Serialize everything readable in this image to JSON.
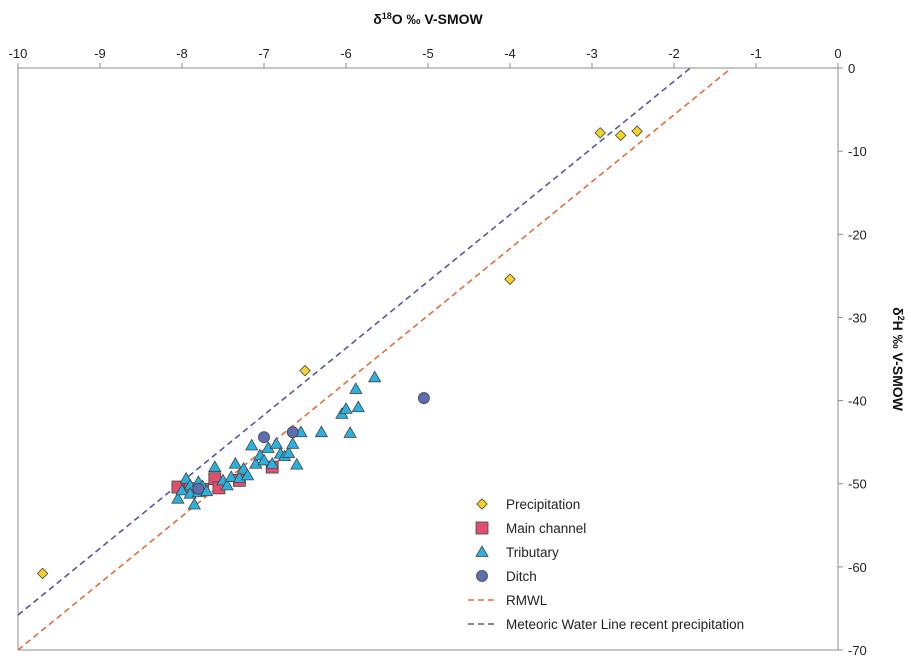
{
  "chart_data": {
    "type": "scatter",
    "x_axis": {
      "title_prefix": "δ",
      "title_sup": "18",
      "title_rest": "O ‰ V-SMOW",
      "position": "top",
      "range": [
        -10,
        0
      ],
      "ticks": [
        -10,
        -9,
        -8,
        -7,
        -6,
        -5,
        -4,
        -3,
        -2,
        -1,
        0
      ],
      "tick_labels": [
        "-10",
        "-9",
        "-8",
        "-7",
        "-6",
        "-5",
        "-4",
        "-3",
        "-2",
        "-1",
        "0"
      ]
    },
    "y_axis": {
      "title_prefix": "δ",
      "title_sup": "2",
      "title_rest": "H ‰ V-SMOW",
      "position": "right",
      "range": [
        -70,
        0
      ],
      "ticks": [
        0,
        -10,
        -20,
        -30,
        -40,
        -50,
        -60,
        -70
      ],
      "tick_labels": [
        "0",
        "-10",
        "-20",
        "-30",
        "-40",
        "-50",
        "-60",
        "-70"
      ]
    },
    "grid": false,
    "legend_position": "bottom-right",
    "series": [
      {
        "name": "Precipitation",
        "marker": "diamond",
        "color": "#F5D327",
        "points": [
          [
            -9.7,
            -60.8
          ],
          [
            -6.5,
            -36.4
          ],
          [
            -4.0,
            -25.4
          ],
          [
            -2.9,
            -7.8
          ],
          [
            -2.65,
            -8.1
          ],
          [
            -2.45,
            -7.6
          ]
        ]
      },
      {
        "name": "Main channel",
        "marker": "square",
        "color": "#E0506E",
        "points": [
          [
            -8.05,
            -50.4
          ],
          [
            -7.9,
            -50.6
          ],
          [
            -7.75,
            -50.7
          ],
          [
            -7.6,
            -49.4
          ],
          [
            -7.55,
            -50.5
          ],
          [
            -7.3,
            -49.6
          ],
          [
            -6.9,
            -48.0
          ]
        ]
      },
      {
        "name": "Tributary",
        "marker": "triangle",
        "color": "#2BB1E0",
        "points": [
          [
            -8.05,
            -51.8
          ],
          [
            -8.0,
            -50.8
          ],
          [
            -7.95,
            -49.4
          ],
          [
            -7.9,
            -50.2
          ],
          [
            -7.9,
            -51.2
          ],
          [
            -7.85,
            -52.5
          ],
          [
            -7.8,
            -51.0
          ],
          [
            -7.8,
            -49.8
          ],
          [
            -7.75,
            -50.3
          ],
          [
            -7.7,
            -50.9
          ],
          [
            -7.6,
            -48.0
          ],
          [
            -7.5,
            -49.6
          ],
          [
            -7.45,
            -50.2
          ],
          [
            -7.4,
            -49.2
          ],
          [
            -7.35,
            -47.6
          ],
          [
            -7.3,
            -49.3
          ],
          [
            -7.25,
            -48.2
          ],
          [
            -7.2,
            -49.0
          ],
          [
            -7.15,
            -45.4
          ],
          [
            -7.1,
            -47.6
          ],
          [
            -7.05,
            -46.6
          ],
          [
            -7.0,
            -47.2
          ],
          [
            -6.95,
            -45.7
          ],
          [
            -6.9,
            -47.6
          ],
          [
            -6.85,
            -45.2
          ],
          [
            -6.8,
            -46.4
          ],
          [
            -6.75,
            -46.7
          ],
          [
            -6.7,
            -46.3
          ],
          [
            -6.65,
            -45.2
          ],
          [
            -6.6,
            -47.7
          ],
          [
            -6.55,
            -43.8
          ],
          [
            -6.3,
            -43.8
          ],
          [
            -6.05,
            -41.6
          ],
          [
            -6.0,
            -41.0
          ],
          [
            -5.95,
            -43.9
          ],
          [
            -5.88,
            -38.6
          ],
          [
            -5.85,
            -40.8
          ],
          [
            -5.65,
            -37.2
          ]
        ]
      },
      {
        "name": "Ditch",
        "marker": "circle",
        "color": "#5E6EB3",
        "points": [
          [
            -7.8,
            -50.6
          ],
          [
            -7.0,
            -44.4
          ],
          [
            -6.65,
            -43.8
          ],
          [
            -5.05,
            -39.7
          ]
        ]
      }
    ],
    "lines": [
      {
        "name": "RMWL",
        "style": "dashed",
        "color": "#E36D3C",
        "from": [
          -10,
          -70.0
        ],
        "to": [
          -1.3,
          0
        ]
      },
      {
        "name": "Meteoric Water Line recent precipitation",
        "style": "dashed",
        "color": "#5459A4",
        "from": [
          -10,
          -65.8
        ],
        "to": [
          -1.8,
          0
        ]
      }
    ]
  }
}
